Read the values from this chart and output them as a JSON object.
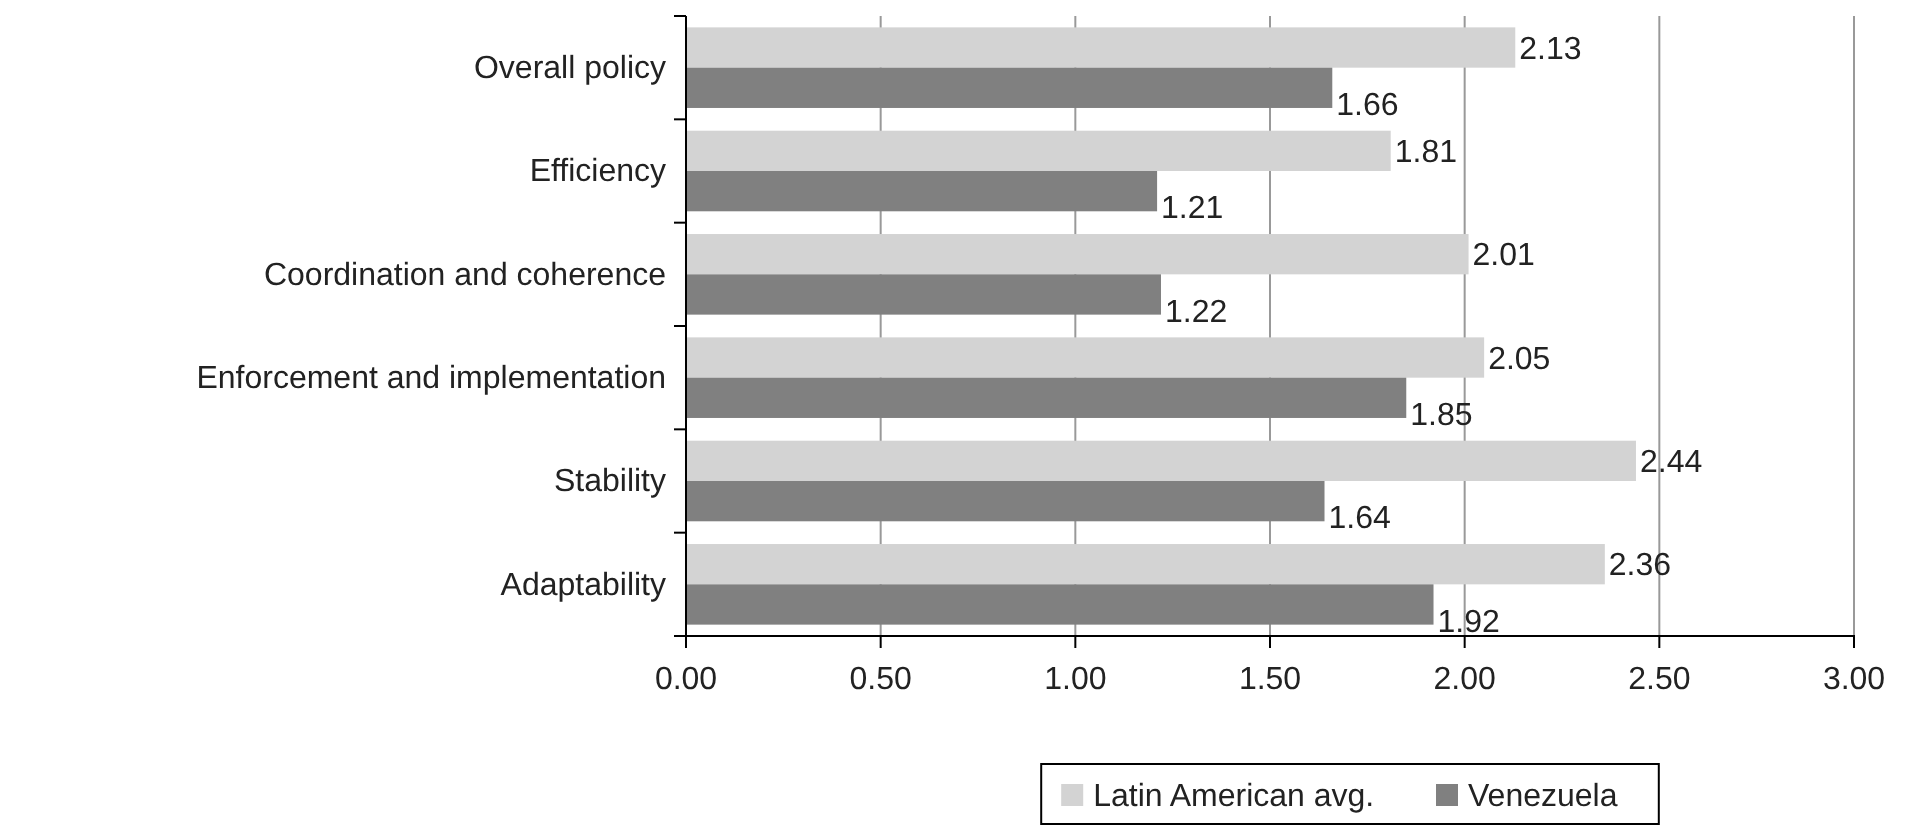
{
  "chart_data": {
    "type": "bar",
    "orientation": "horizontal",
    "categories": [
      "Overall policy",
      "Efficiency",
      "Coordination and coherence",
      "Enforcement and implementation",
      "Stability",
      "Adaptability"
    ],
    "series": [
      {
        "name": "Latin American avg.",
        "color": "#d3d3d3",
        "values": [
          2.13,
          1.81,
          2.01,
          2.05,
          2.44,
          2.36
        ]
      },
      {
        "name": "Venezuela",
        "color": "#808080",
        "values": [
          1.66,
          1.21,
          1.22,
          1.85,
          1.64,
          1.92
        ]
      }
    ],
    "xlim": [
      0,
      3
    ],
    "xticks": [
      {
        "value": 0,
        "label": "0.00"
      },
      {
        "value": 0.5,
        "label": "0.50"
      },
      {
        "value": 1,
        "label": "1.00"
      },
      {
        "value": 1.5,
        "label": "1.50"
      },
      {
        "value": 2,
        "label": "2.00"
      },
      {
        "value": 2.5,
        "label": "2.50"
      },
      {
        "value": 3,
        "label": "3.00"
      }
    ],
    "grid": "x",
    "legend": "bottom",
    "data_labels": true
  }
}
